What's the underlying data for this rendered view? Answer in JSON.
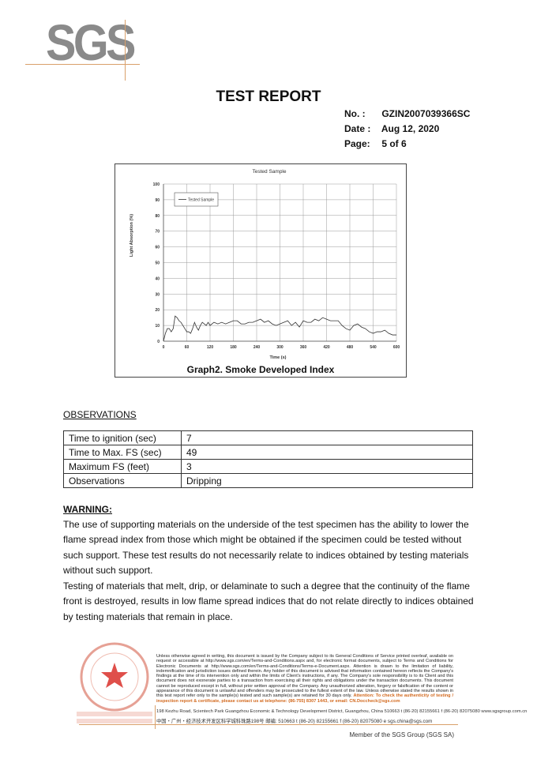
{
  "logo": {
    "text": "SGS",
    "accent": "#d9a06a",
    "color": "#8a8a8a"
  },
  "header": {
    "title": "TEST REPORT",
    "no_label": "No.  :",
    "no_value": "GZIN2007039366SC",
    "date_label": "Date :",
    "date_value": "Aug 12, 2020",
    "page_label": "Page:",
    "page_value": "5 of  6"
  },
  "chart_data": {
    "type": "line",
    "title": "Tested Sample",
    "xlabel": "Time (s)",
    "ylabel": "Light Absorption (%)",
    "xlim": [
      0,
      600
    ],
    "ylim": [
      0,
      100
    ],
    "xticks": [
      0,
      60,
      120,
      180,
      240,
      300,
      360,
      420,
      480,
      540,
      600
    ],
    "yticks": [
      0,
      10,
      20,
      30,
      40,
      50,
      60,
      70,
      80,
      90,
      100
    ],
    "grid": true,
    "legend_position": "top-left",
    "series": [
      {
        "name": "Tested Sample",
        "color": "#333333",
        "x": [
          0,
          5,
          10,
          15,
          20,
          25,
          30,
          35,
          40,
          45,
          50,
          55,
          60,
          65,
          70,
          75,
          80,
          85,
          90,
          95,
          100,
          105,
          110,
          115,
          120,
          130,
          140,
          150,
          160,
          170,
          180,
          190,
          200,
          210,
          220,
          230,
          240,
          250,
          260,
          270,
          280,
          290,
          300,
          310,
          320,
          330,
          340,
          350,
          360,
          370,
          380,
          390,
          400,
          410,
          420,
          430,
          440,
          450,
          460,
          470,
          480,
          490,
          500,
          510,
          520,
          530,
          540,
          550,
          560,
          570,
          580,
          590,
          600
        ],
        "y": [
          0,
          5,
          8,
          8,
          6,
          8,
          16,
          15,
          13,
          12,
          10,
          8,
          6,
          6,
          5,
          8,
          12,
          9,
          7,
          10,
          12,
          11,
          10,
          12,
          10,
          12,
          11,
          12,
          11,
          12,
          13,
          13,
          11,
          11,
          12,
          12,
          13,
          14,
          12,
          13,
          11,
          10,
          11,
          12,
          13,
          10,
          12,
          9,
          13,
          12,
          12,
          14,
          13,
          15,
          14,
          13,
          13,
          13,
          10,
          8,
          7,
          10,
          11,
          9,
          8,
          6,
          5,
          6,
          6,
          7,
          5,
          4,
          4
        ]
      }
    ],
    "caption": "Graph2.  Smoke Developed Index"
  },
  "observations": {
    "title": "OBSERVATIONS",
    "rows": [
      {
        "label": "Time to ignition (sec)",
        "value": "7"
      },
      {
        "label": "Time to Max. FS (sec)",
        "value": "49"
      },
      {
        "label": "Maximum FS (feet)",
        "value": "3"
      },
      {
        "label": "Observations",
        "value": "Dripping"
      }
    ]
  },
  "warning": {
    "title": "WARNING:",
    "p1": "The use of supporting materials on the underside of the test specimen has the ability to lower the flame spread index from those which might be obtained if the specimen could be tested without such support. These test results do not necessarily relate to indices obtained by testing materials without such support.",
    "p2": "Testing of materials that melt, drip, or delaminate to such a degree that the continuity of the flame front is destroyed, results in low flame spread indices that do not relate directly to indices obtained by testing materials that remain in place."
  },
  "footer": {
    "disclaimer": "Unless otherwise agreed in writing, this document is issued by the Company subject to its General Conditions of Service printed overleaf, available on request or accessible at http://www.sgs.com/en/Terms-and-Conditions.aspx and, for electronic format documents, subject to Terms and Conditions for Electronic Documents at http://www.sgs.com/en/Terms-and-Conditions/Terms-e-Document.aspx. Attention is drawn to the limitation of liability, indemnification and jurisdiction issues defined therein. Any holder of this document is advised that information contained hereon reflects the Company's findings at the time of its intervention only and within the limits of Client's instructions, if any. The Company's sole responsibility is to its Client and this document does not exonerate parties to a transaction from exercising all their rights and obligations under the transaction documents. This document cannot be reproduced except in full, without prior written approval of the Company. Any unauthorized alteration, forgery or falsification of the content or appearance of this document is unlawful and offenders may be prosecuted to the fullest extent of the law. Unless otherwise stated the results shown in this test report refer only to the sample(s) tested and such sample(s) are retained for 30 days only.",
    "attention": "Attention: To check the authenticity of testing / inspection report & certificate, please contact us at telephone: (86-755) 8307 1443, or email: CN.Doccheck@sgs.com",
    "address_en": "198 Kezhu Road, Scientech Park Guangzhou Economic & Technology Development District, Guangzhou, China  510663    t (86-20) 82155661   f (86-20) 82075080     www.sgsgroup.com.cn",
    "address_cn": "中国・广州・经济技术开发区科学城科珠路198号      邮编: 510663   t (86-20) 82155661   f (86-20) 82075080     e  sgs.china@sgs.com",
    "member": "Member of the SGS Group (SGS SA)",
    "stamp_text": "SGS-CSTC Standards Technical Services Co., Ltd. Guangzhou Branch Testing Center Materials Laboratory"
  }
}
